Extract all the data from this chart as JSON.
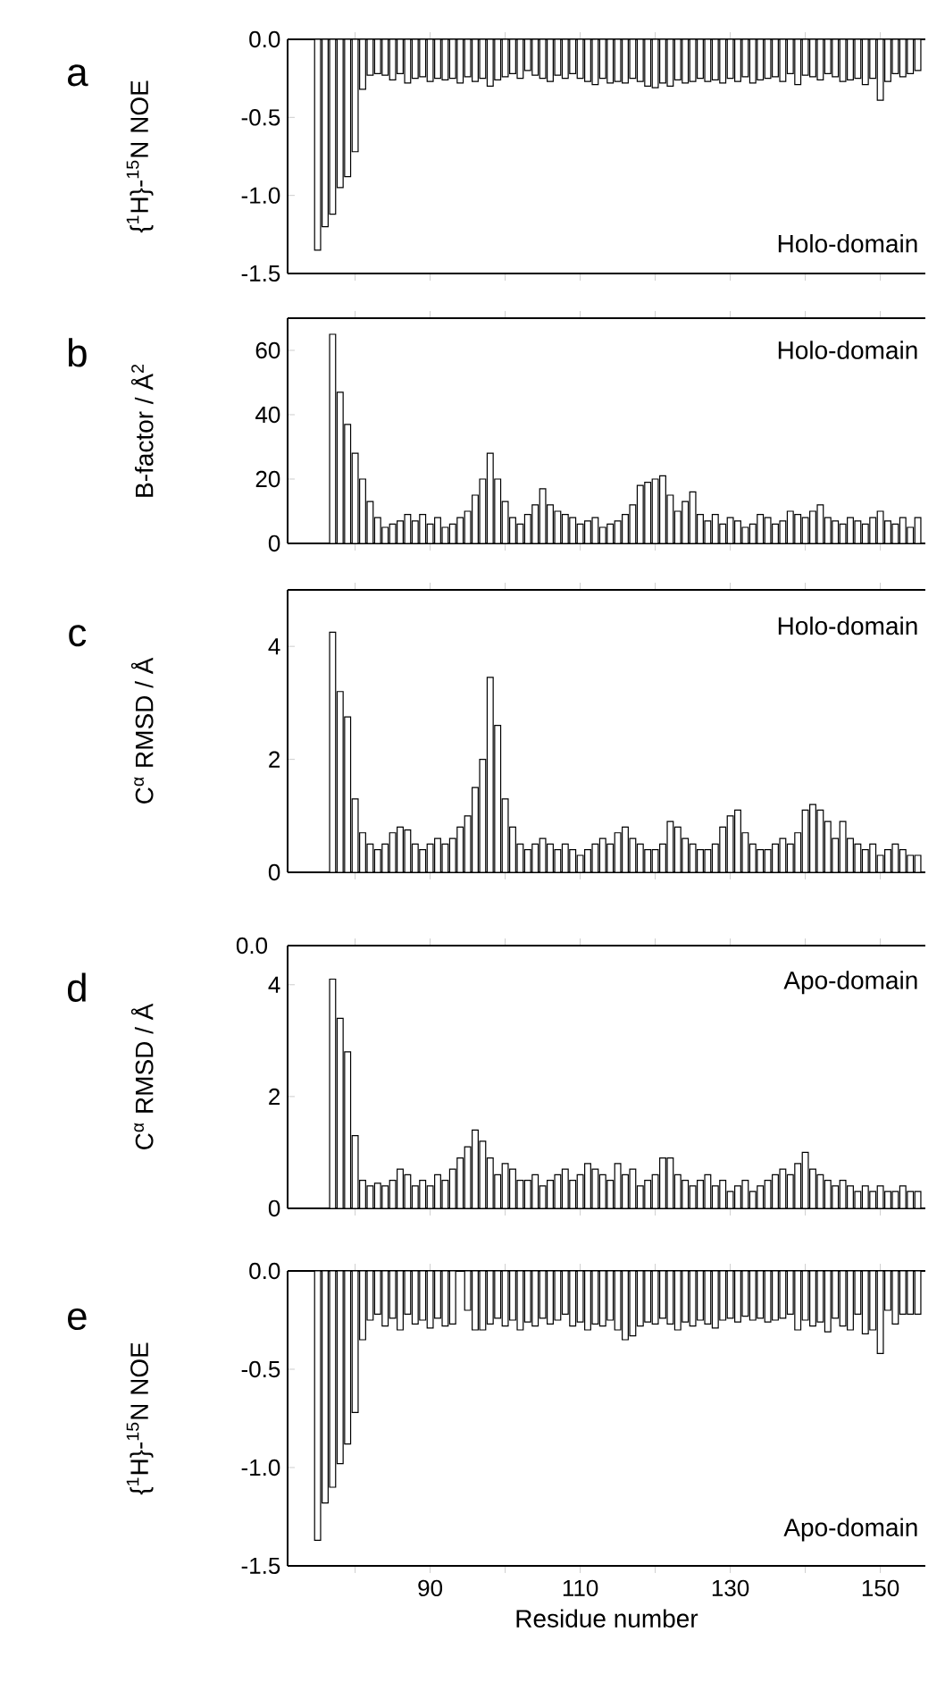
{
  "chart_data": [
    {
      "type": "bar",
      "title": "a",
      "ylabel": "{$^{1}$H}-$^{15}$N NOE",
      "annotations": [
        "Holo-domain"
      ],
      "color": "#ffffff",
      "tick_labels": "y",
      "xlim": [
        71,
        156
      ],
      "ylim": [
        -1.5,
        0
      ],
      "yticks": [
        {
          "value": -1.5,
          "label": "-1.5"
        },
        {
          "value": -1,
          "label": "-1.0"
        },
        -0.5,
        {
          "value": 0,
          "label": "0.0"
        }
      ],
      "xticks": [
        {
          "value": 80,
          "label": null
        },
        90,
        {
          "value": 100,
          "label": null
        },
        110,
        {
          "value": 120,
          "label": null
        },
        130,
        {
          "value": 140,
          "label": null
        },
        150
      ],
      "x": [
        75,
        76,
        77,
        78,
        79,
        80,
        81,
        82,
        83,
        84,
        85,
        86,
        87,
        88,
        89,
        90,
        91,
        92,
        93,
        94,
        95,
        96,
        97,
        98,
        99,
        100,
        101,
        102,
        103,
        104,
        105,
        106,
        107,
        108,
        109,
        110,
        111,
        112,
        113,
        114,
        115,
        116,
        117,
        118,
        119,
        120,
        121,
        122,
        123,
        124,
        125,
        126,
        127,
        128,
        129,
        130,
        131,
        132,
        133,
        134,
        135,
        136,
        137,
        138,
        139,
        140,
        141,
        142,
        143,
        144,
        145,
        146,
        147,
        148,
        149,
        150,
        151,
        152,
        153,
        154,
        155
      ],
      "values": [
        -1.35,
        -1.2,
        -1.12,
        -0.95,
        -0.88,
        -0.72,
        -0.32,
        -0.23,
        -0.22,
        -0.23,
        -0.26,
        -0.22,
        -0.28,
        -0.25,
        -0.24,
        -0.27,
        -0.25,
        -0.26,
        -0.25,
        -0.28,
        -0.24,
        -0.27,
        -0.25,
        -0.3,
        -0.26,
        -0.24,
        -0.22,
        -0.25,
        -0.2,
        -0.23,
        -0.25,
        -0.27,
        -0.23,
        -0.25,
        -0.22,
        -0.25,
        -0.27,
        -0.29,
        -0.25,
        -0.28,
        -0.27,
        -0.28,
        -0.25,
        -0.27,
        -0.3,
        -0.31,
        -0.28,
        -0.3,
        -0.26,
        -0.28,
        -0.27,
        -0.25,
        -0.27,
        -0.26,
        -0.28,
        -0.25,
        -0.27,
        -0.24,
        -0.28,
        -0.26,
        -0.25,
        -0.24,
        -0.27,
        -0.22,
        -0.29,
        -0.23,
        -0.24,
        -0.26,
        -0.22,
        -0.24,
        -0.27,
        -0.26,
        -0.25,
        -0.29,
        -0.25,
        -0.39,
        -0.27,
        -0.22,
        -0.24,
        -0.22,
        -0.2
      ]
    },
    {
      "type": "bar",
      "title": "b",
      "ylabel": "B-factor / Å$^{2}$",
      "annotations": [
        "Holo-domain"
      ],
      "color": "#ffffff",
      "tick_labels": "y",
      "xlim": [
        71,
        156
      ],
      "ylim": [
        0,
        70
      ],
      "yticks": [
        0,
        20,
        40,
        60
      ],
      "xticks": [
        {
          "value": 80,
          "label": null
        },
        90,
        {
          "value": 100,
          "label": null
        },
        110,
        {
          "value": 120,
          "label": null
        },
        130,
        {
          "value": 140,
          "label": null
        },
        150
      ],
      "x": [
        77,
        78,
        79,
        80,
        81,
        82,
        83,
        84,
        85,
        86,
        87,
        88,
        89,
        90,
        91,
        92,
        93,
        94,
        95,
        96,
        97,
        98,
        99,
        100,
        101,
        102,
        103,
        104,
        105,
        106,
        107,
        108,
        109,
        110,
        111,
        112,
        113,
        114,
        115,
        116,
        117,
        118,
        119,
        120,
        121,
        122,
        123,
        124,
        125,
        126,
        127,
        128,
        129,
        130,
        131,
        132,
        133,
        134,
        135,
        136,
        137,
        138,
        139,
        140,
        141,
        142,
        143,
        144,
        145,
        146,
        147,
        148,
        149,
        150,
        151,
        152,
        153,
        154,
        155
      ],
      "values": [
        65,
        47,
        37,
        28,
        20,
        13,
        8,
        5,
        6,
        7,
        9,
        7,
        9,
        6,
        8,
        5,
        6,
        8,
        10,
        15,
        20,
        28,
        20,
        13,
        8,
        6,
        9,
        12,
        17,
        12,
        10,
        9,
        8,
        6,
        7,
        8,
        5,
        6,
        7,
        9,
        12,
        18,
        19,
        20,
        21,
        15,
        10,
        13,
        16,
        9,
        7,
        9,
        6,
        8,
        7,
        5,
        6,
        9,
        8,
        6,
        7,
        10,
        9,
        8,
        10,
        12,
        8,
        7,
        6,
        8,
        7,
        6,
        8,
        10,
        7,
        6,
        8,
        5,
        8
      ]
    },
    {
      "type": "bar",
      "title": "c",
      "ylabel": "C$^{α}$ RMSD / Å",
      "annotations": [
        "Holo-domain"
      ],
      "color": "#ffffff",
      "tick_labels": "y",
      "xlim": [
        71,
        156
      ],
      "ylim": [
        0,
        5
      ],
      "yticks": [
        0,
        2,
        4
      ],
      "xticks": [
        {
          "value": 80,
          "label": null
        },
        90,
        {
          "value": 100,
          "label": null
        },
        110,
        {
          "value": 120,
          "label": null
        },
        130,
        {
          "value": 140,
          "label": null
        },
        150
      ],
      "x": [
        77,
        78,
        79,
        80,
        81,
        82,
        83,
        84,
        85,
        86,
        87,
        88,
        89,
        90,
        91,
        92,
        93,
        94,
        95,
        96,
        97,
        98,
        99,
        100,
        101,
        102,
        103,
        104,
        105,
        106,
        107,
        108,
        109,
        110,
        111,
        112,
        113,
        114,
        115,
        116,
        117,
        118,
        119,
        120,
        121,
        122,
        123,
        124,
        125,
        126,
        127,
        128,
        129,
        130,
        131,
        132,
        133,
        134,
        135,
        136,
        137,
        138,
        139,
        140,
        141,
        142,
        143,
        144,
        145,
        146,
        147,
        148,
        149,
        150,
        151,
        152,
        153,
        154,
        155
      ],
      "values": [
        4.25,
        3.2,
        2.75,
        1.3,
        0.7,
        0.5,
        0.4,
        0.5,
        0.7,
        0.8,
        0.75,
        0.5,
        0.4,
        0.5,
        0.6,
        0.5,
        0.6,
        0.8,
        1.0,
        1.5,
        2.0,
        3.45,
        2.6,
        1.3,
        0.8,
        0.5,
        0.4,
        0.5,
        0.6,
        0.5,
        0.4,
        0.5,
        0.4,
        0.3,
        0.4,
        0.5,
        0.6,
        0.5,
        0.7,
        0.8,
        0.6,
        0.5,
        0.4,
        0.4,
        0.5,
        0.9,
        0.8,
        0.6,
        0.5,
        0.4,
        0.4,
        0.5,
        0.8,
        1.0,
        1.1,
        0.7,
        0.5,
        0.4,
        0.4,
        0.5,
        0.6,
        0.5,
        0.7,
        1.1,
        1.2,
        1.1,
        0.9,
        0.6,
        0.9,
        0.6,
        0.5,
        0.4,
        0.5,
        0.3,
        0.4,
        0.5,
        0.4,
        0.3,
        0.3
      ]
    },
    {
      "type": "bar",
      "title": "d",
      "ylabel": "C$^{α}$ RMSD / Å",
      "annotations": [
        "Apo-domain",
        "0.0"
      ],
      "color": "#ffffff",
      "tick_labels": "y",
      "xlim": [
        71,
        156
      ],
      "ylim": [
        0,
        4.7
      ],
      "yticks": [
        0,
        2,
        4
      ],
      "xticks": [
        {
          "value": 80,
          "label": null
        },
        90,
        {
          "value": 100,
          "label": null
        },
        110,
        {
          "value": 120,
          "label": null
        },
        130,
        {
          "value": 140,
          "label": null
        },
        150
      ],
      "x": [
        77,
        78,
        79,
        80,
        81,
        82,
        83,
        84,
        85,
        86,
        87,
        88,
        89,
        90,
        91,
        92,
        93,
        94,
        95,
        96,
        97,
        98,
        99,
        100,
        101,
        102,
        103,
        104,
        105,
        106,
        107,
        108,
        109,
        110,
        111,
        112,
        113,
        114,
        115,
        116,
        117,
        118,
        119,
        120,
        121,
        122,
        123,
        124,
        125,
        126,
        127,
        128,
        129,
        130,
        131,
        132,
        133,
        134,
        135,
        136,
        137,
        138,
        139,
        140,
        141,
        142,
        143,
        144,
        145,
        146,
        147,
        148,
        149,
        150,
        151,
        152,
        153,
        154,
        155
      ],
      "values": [
        4.1,
        3.4,
        2.8,
        1.3,
        0.5,
        0.4,
        0.45,
        0.4,
        0.5,
        0.7,
        0.6,
        0.4,
        0.5,
        0.4,
        0.6,
        0.5,
        0.7,
        0.9,
        1.1,
        1.4,
        1.2,
        0.9,
        0.6,
        0.8,
        0.7,
        0.5,
        0.5,
        0.6,
        0.4,
        0.5,
        0.6,
        0.7,
        0.5,
        0.6,
        0.8,
        0.7,
        0.6,
        0.5,
        0.8,
        0.6,
        0.7,
        0.4,
        0.5,
        0.6,
        0.9,
        0.9,
        0.6,
        0.5,
        0.4,
        0.5,
        0.6,
        0.4,
        0.5,
        0.3,
        0.4,
        0.5,
        0.3,
        0.4,
        0.5,
        0.6,
        0.7,
        0.6,
        0.8,
        1.0,
        0.7,
        0.6,
        0.5,
        0.4,
        0.5,
        0.4,
        0.3,
        0.4,
        0.3,
        0.4,
        0.3,
        0.3,
        0.4,
        0.3,
        0.3
      ]
    },
    {
      "type": "bar",
      "title": "e",
      "ylabel": "{$^{1}$H}-$^{15}$N NOE",
      "xlabel": "Residue number",
      "annotations": [
        "Apo-domain"
      ],
      "color": "#ffffff",
      "xlim": [
        71,
        156
      ],
      "ylim": [
        -1.5,
        0
      ],
      "yticks": [
        {
          "value": -1.5,
          "label": "-1.5"
        },
        {
          "value": -1,
          "label": "-1.0"
        },
        -0.5,
        {
          "value": 0,
          "label": "0.0"
        }
      ],
      "xticks": [
        {
          "value": 80,
          "label": null
        },
        90,
        {
          "value": 100,
          "label": null
        },
        110,
        {
          "value": 120,
          "label": null
        },
        130,
        {
          "value": 140,
          "label": null
        },
        150
      ],
      "x": [
        75,
        76,
        77,
        78,
        79,
        80,
        81,
        82,
        83,
        84,
        85,
        86,
        87,
        88,
        89,
        90,
        91,
        92,
        93,
        94,
        95,
        96,
        97,
        98,
        99,
        100,
        101,
        102,
        103,
        104,
        105,
        106,
        107,
        108,
        109,
        110,
        111,
        112,
        113,
        114,
        115,
        116,
        117,
        118,
        119,
        120,
        121,
        122,
        123,
        124,
        125,
        126,
        127,
        128,
        129,
        130,
        131,
        132,
        133,
        134,
        135,
        136,
        137,
        138,
        139,
        140,
        141,
        142,
        143,
        144,
        145,
        146,
        147,
        148,
        149,
        150,
        151,
        152,
        153,
        154,
        155
      ],
      "values": [
        -1.37,
        -1.18,
        -1.1,
        -0.98,
        -0.88,
        -0.72,
        -0.35,
        -0.25,
        -0.22,
        -0.28,
        -0.24,
        -0.3,
        -0.22,
        -0.27,
        -0.25,
        -0.29,
        -0.24,
        -0.28,
        -0.27,
        null,
        -0.2,
        -0.3,
        -0.3,
        -0.27,
        -0.24,
        -0.28,
        -0.25,
        -0.3,
        -0.26,
        -0.28,
        -0.24,
        -0.27,
        -0.25,
        -0.22,
        -0.28,
        -0.26,
        -0.3,
        -0.27,
        -0.28,
        -0.25,
        -0.3,
        -0.35,
        -0.33,
        -0.28,
        -0.26,
        -0.27,
        -0.24,
        -0.27,
        -0.3,
        -0.26,
        -0.28,
        -0.25,
        -0.27,
        -0.29,
        -0.25,
        -0.24,
        -0.26,
        -0.23,
        -0.25,
        -0.24,
        -0.26,
        -0.25,
        -0.24,
        -0.22,
        -0.3,
        -0.25,
        -0.28,
        -0.26,
        -0.31,
        -0.24,
        -0.28,
        -0.3,
        -0.22,
        -0.32,
        -0.3,
        -0.42,
        -0.2,
        -0.27,
        -0.22,
        -0.22,
        -0.22
      ]
    }
  ]
}
